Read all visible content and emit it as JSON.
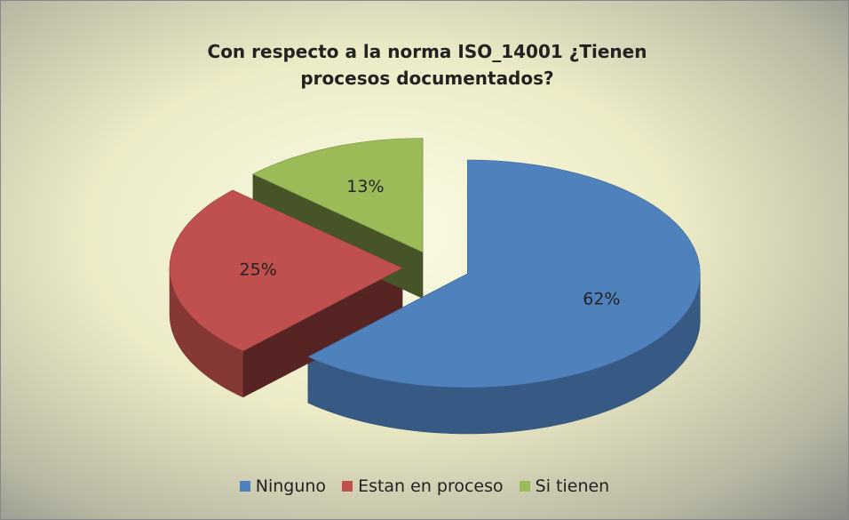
{
  "chart_data": {
    "type": "pie3d",
    "title": "Con respecto a la norma ISO_14001 ¿Tienen procesos documentados?",
    "categories": [
      "Ninguno",
      "Estan en proceso",
      "Si tienen"
    ],
    "values": [
      62,
      25,
      13
    ],
    "value_labels": [
      "62%",
      "25%",
      "13%"
    ],
    "colors": [
      "#4f81bd",
      "#c0504d",
      "#9bbb59"
    ],
    "legend": "bottom"
  }
}
